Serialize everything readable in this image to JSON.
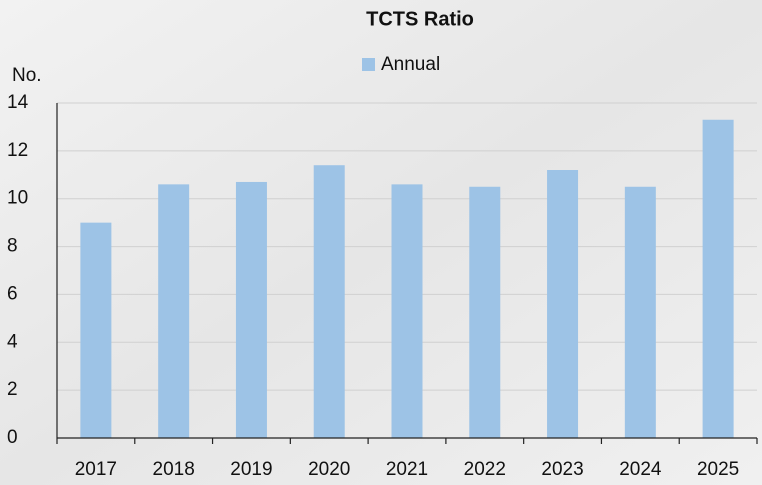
{
  "chart_data": {
    "type": "bar",
    "title": "TCTS Ratio",
    "y_label": "No.",
    "categories": [
      "2017",
      "2018",
      "2019",
      "2020",
      "2021",
      "2022",
      "2023",
      "2024",
      "2025"
    ],
    "series": [
      {
        "name": "Annual",
        "color": "#9dc3e6",
        "values": [
          9.0,
          10.6,
          10.7,
          11.4,
          10.6,
          10.5,
          11.2,
          10.5,
          13.3
        ]
      }
    ],
    "ylim": [
      0,
      14
    ],
    "yticks": [
      0,
      2,
      4,
      6,
      8,
      10,
      12,
      14
    ],
    "grid": true,
    "legend": "top"
  }
}
